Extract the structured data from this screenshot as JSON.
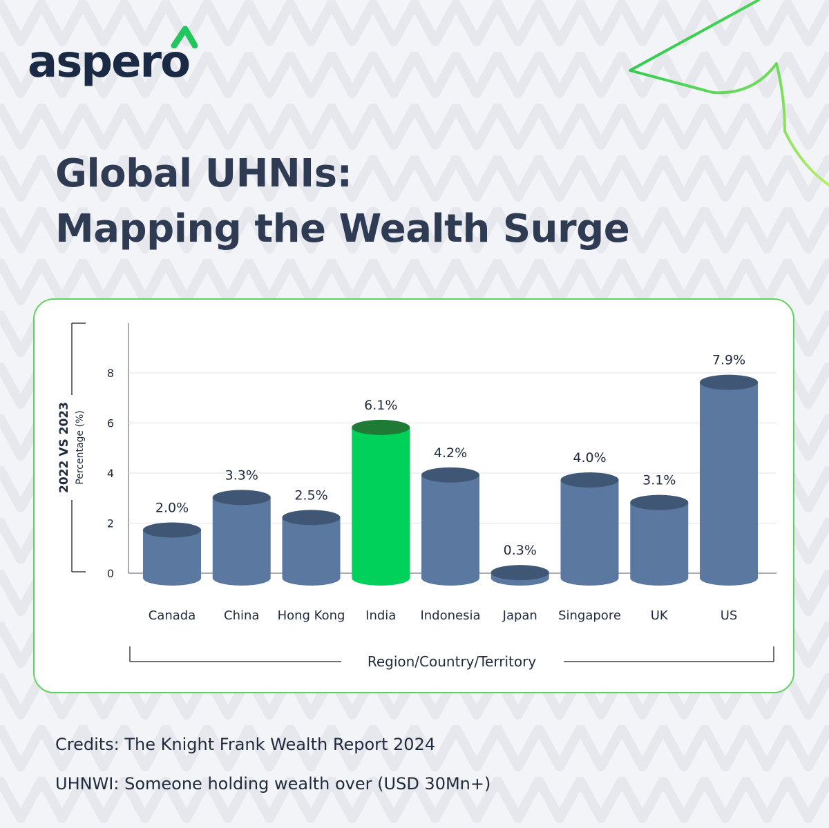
{
  "brand": {
    "name": "aspero",
    "colors": {
      "navy": "#1b2a44",
      "title": "#2e3b52",
      "accent_green": "#00d15a",
      "bar_blue": "#5a78a0",
      "card_border": "#5fd35f"
    },
    "icons": [
      "caret-up-icon",
      "paper-plane-icon"
    ]
  },
  "headline": {
    "line1": "Global UHNIs:",
    "line2": "Mapping the Wealth Surge"
  },
  "chart_data": {
    "type": "bar",
    "categories": [
      "Canada",
      "China",
      "Hong Kong",
      "India",
      "Indonesia",
      "Japan",
      "Singapore",
      "UK",
      "US"
    ],
    "values": [
      2.0,
      3.3,
      2.5,
      6.1,
      4.2,
      0.3,
      4.0,
      3.1,
      7.9
    ],
    "value_labels": [
      "2.0%",
      "3.3%",
      "2.5%",
      "6.1%",
      "4.2%",
      "0.3%",
      "4.0%",
      "3.1%",
      "7.9%"
    ],
    "highlight": "India",
    "yticks": [
      "0",
      "2",
      "4",
      "6",
      "8"
    ],
    "ylim": [
      0,
      8
    ],
    "ylabel": "2022 VS 2023",
    "ylabel_sub": "Percentage (%)",
    "xlabel": "Region/Country/Territory",
    "grid": true
  },
  "footer": {
    "credits": "Credits: The Knight Frank Wealth Report 2024",
    "definition": "UHNWI: Someone holding wealth over (USD 30Mn+)"
  }
}
